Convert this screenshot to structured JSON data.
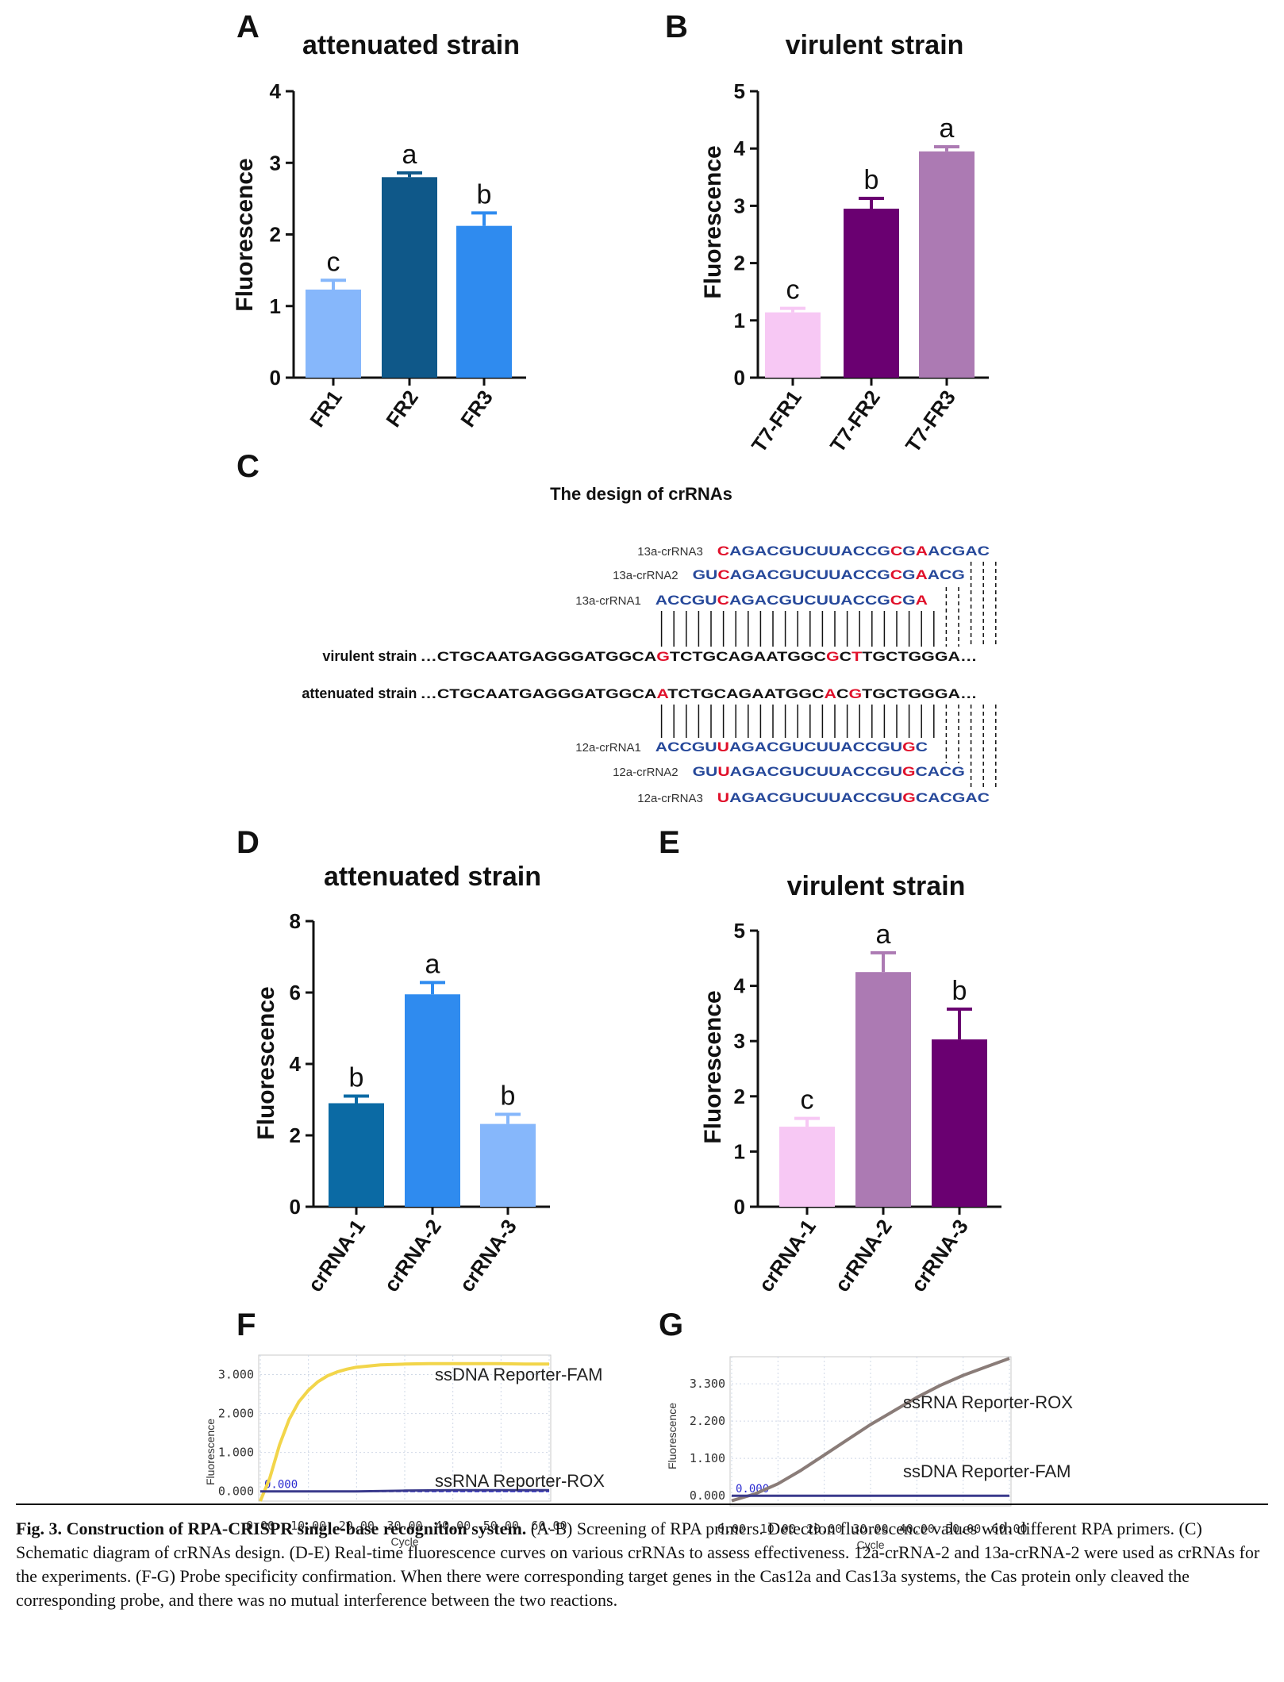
{
  "panel_letters": {
    "A": "A",
    "B": "B",
    "C": "C",
    "D": "D",
    "E": "E",
    "F": "F",
    "G": "G"
  },
  "chart_data": [
    {
      "id": "A",
      "type": "bar",
      "title": "attenuated strain",
      "ylabel": "Fluorescence",
      "ylim": [
        0,
        4
      ],
      "yticks": [
        0,
        1,
        2,
        3,
        4
      ],
      "categories": [
        "FR1",
        "FR2",
        "FR3"
      ],
      "values": [
        1.23,
        2.8,
        2.12
      ],
      "errors": [
        0.13,
        0.06,
        0.18
      ],
      "letters": [
        "c",
        "a",
        "b"
      ],
      "colors": [
        "#86b7fb",
        "#0f5889",
        "#2f8bef"
      ]
    },
    {
      "id": "B",
      "type": "bar",
      "title": "virulent strain",
      "ylabel": "Fluorescence",
      "ylim": [
        0,
        5
      ],
      "yticks": [
        0,
        1,
        2,
        3,
        4,
        5
      ],
      "categories": [
        "T7-FR1",
        "T7-FR2",
        "T7-FR3"
      ],
      "values": [
        1.14,
        2.95,
        3.95
      ],
      "errors": [
        0.07,
        0.18,
        0.08
      ],
      "letters": [
        "c",
        "b",
        "a"
      ],
      "colors": [
        "#f7c8f4",
        "#6a0071",
        "#ac7ab3"
      ]
    },
    {
      "id": "D",
      "type": "bar",
      "title": "attenuated strain",
      "ylabel": "Fluorescence",
      "ylim": [
        0,
        8
      ],
      "yticks": [
        0,
        2,
        4,
        6,
        8
      ],
      "categories": [
        "crRNA-1",
        "crRNA-2",
        "crRNA-3"
      ],
      "values": [
        2.9,
        5.95,
        2.32
      ],
      "errors": [
        0.2,
        0.33,
        0.27
      ],
      "letters": [
        "b",
        "a",
        "b"
      ],
      "colors": [
        "#0b6aa4",
        "#2f8bef",
        "#86b7fb"
      ]
    },
    {
      "id": "E",
      "type": "bar",
      "title": "virulent strain",
      "ylabel": "Fluorescence",
      "ylim": [
        0,
        5
      ],
      "yticks": [
        0,
        1,
        2,
        3,
        4,
        5
      ],
      "categories": [
        "crRNA-1",
        "crRNA-2",
        "crRNA-3"
      ],
      "values": [
        1.45,
        4.25,
        3.03
      ],
      "errors": [
        0.15,
        0.35,
        0.55
      ],
      "letters": [
        "c",
        "a",
        "b"
      ],
      "colors": [
        "#f7c8f4",
        "#ac7ab3",
        "#6a0071"
      ]
    },
    {
      "id": "F",
      "type": "line",
      "xlabel": "Cycle",
      "ylabel": "Fluorescence",
      "xlim": [
        0,
        60
      ],
      "ylim": [
        -0.25,
        3.5
      ],
      "xticks": [
        "0.00",
        "10.00",
        "20.00",
        "30.00",
        "40.00",
        "50.00",
        "60.00"
      ],
      "yticks": [
        "0.000",
        "1.000",
        "2.000",
        "3.000"
      ],
      "ytick_values": [
        0,
        1,
        2,
        3
      ],
      "zero_label": "0.000",
      "series": [
        {
          "name": "ssDNA Reporter-FAM",
          "color": "#f2d54a",
          "x": [
            0,
            2,
            4,
            6,
            8,
            10,
            12,
            14,
            16,
            18,
            20,
            25,
            30,
            35,
            40,
            45,
            50,
            55,
            60
          ],
          "y": [
            -0.25,
            0.35,
            1.2,
            1.85,
            2.3,
            2.6,
            2.82,
            2.97,
            3.07,
            3.14,
            3.19,
            3.25,
            3.27,
            3.28,
            3.28,
            3.28,
            3.28,
            3.27,
            3.27
          ]
        },
        {
          "name": "ssRNA Reporter-ROX",
          "color": "#3a3a8c",
          "x": [
            0,
            10,
            20,
            30,
            40,
            50,
            60
          ],
          "y": [
            0.0,
            0.0,
            0.0,
            0.02,
            0.03,
            0.03,
            0.03
          ]
        }
      ]
    },
    {
      "id": "G",
      "type": "line",
      "xlabel": "Cycle",
      "ylabel": "Fluorescence",
      "xlim": [
        0,
        60
      ],
      "ylim": [
        -0.3,
        4.1
      ],
      "xticks": [
        "0.00",
        "10.00",
        "20.00",
        "30.00",
        "40.00",
        "50.00",
        "60.00"
      ],
      "yticks": [
        "0.000",
        "1.100",
        "2.200",
        "3.300"
      ],
      "ytick_values": [
        0,
        1.1,
        2.2,
        3.3
      ],
      "zero_label": "0.000",
      "series": [
        {
          "name": "ssRNA Reporter-ROX",
          "color": "#8a7c78",
          "x": [
            0,
            5,
            10,
            15,
            20,
            25,
            30,
            35,
            40,
            45,
            50,
            55,
            60
          ],
          "y": [
            -0.15,
            0.05,
            0.35,
            0.75,
            1.2,
            1.65,
            2.1,
            2.5,
            2.9,
            3.25,
            3.55,
            3.8,
            4.05
          ]
        },
        {
          "name": "ssDNA Reporter-FAM",
          "color": "#3a3a8c",
          "x": [
            0,
            10,
            20,
            30,
            40,
            50,
            60
          ],
          "y": [
            0.0,
            0.0,
            0.0,
            0.0,
            0.0,
            0.0,
            0.0
          ]
        }
      ]
    }
  ],
  "crrna_design": {
    "title": "The design of crRNAs",
    "labels": {
      "r13_3": "13a-crRNA3",
      "r13_2": "13a-crRNA2",
      "r13_1": "13a-crRNA1",
      "r12_1": "12a-crRNA1",
      "r12_2": "12a-crRNA2",
      "r12_3": "12a-crRNA3"
    },
    "strain_labels": {
      "virulent": "virulent strain",
      "attenuated": "attenuated strain"
    },
    "sequences": {
      "r13_3": [
        [
          "C",
          "red"
        ],
        [
          "AGACGUCUUACCG",
          "blue"
        ],
        [
          "C",
          "red"
        ],
        [
          "G",
          "blue"
        ],
        [
          "A",
          "red"
        ],
        [
          "ACGAC",
          "blue"
        ]
      ],
      "r13_2": [
        [
          "GU",
          "blue"
        ],
        [
          "C",
          "red"
        ],
        [
          "AGACGUCUUACCG",
          "blue"
        ],
        [
          "C",
          "red"
        ],
        [
          "G",
          "blue"
        ],
        [
          "A",
          "red"
        ],
        [
          "ACG",
          "blue"
        ]
      ],
      "r13_1": [
        [
          "ACCGU",
          "blue"
        ],
        [
          "C",
          "red"
        ],
        [
          "AGACGUCUUACCG",
          "blue"
        ],
        [
          "C",
          "red"
        ],
        [
          "G",
          "blue"
        ],
        [
          "A",
          "red"
        ]
      ],
      "virulent": [
        [
          "…CTGCAATGAGGGATGGCA",
          "black"
        ],
        [
          "G",
          "red"
        ],
        [
          "TCTGCAGAATGGC",
          "black"
        ],
        [
          "G",
          "red"
        ],
        [
          "C",
          "black"
        ],
        [
          "T",
          "red"
        ],
        [
          "TGCTGGGA…",
          "black"
        ]
      ],
      "attenuated": [
        [
          "…CTGCAATGAGGGATGGCA",
          "black"
        ],
        [
          "A",
          "red"
        ],
        [
          "TCTGCAGAATGGC",
          "black"
        ],
        [
          "A",
          "red"
        ],
        [
          "C",
          "black"
        ],
        [
          "G",
          "red"
        ],
        [
          "TGCTGGGA…",
          "black"
        ]
      ],
      "r12_1": [
        [
          "ACCGU",
          "blue"
        ],
        [
          "U",
          "red"
        ],
        [
          "AGACGUCUUACCGU",
          "blue"
        ],
        [
          "G",
          "red"
        ],
        [
          "C",
          "blue"
        ]
      ],
      "r12_2": [
        [
          "GU",
          "blue"
        ],
        [
          "U",
          "red"
        ],
        [
          "AGACGUCUUACCGU",
          "blue"
        ],
        [
          "G",
          "red"
        ],
        [
          "CACG",
          "blue"
        ]
      ],
      "r12_3": [
        [
          "U",
          "red"
        ],
        [
          "AGACGUCUUACCGU",
          "blue"
        ],
        [
          "G",
          "red"
        ],
        [
          "CACGAC",
          "blue"
        ]
      ]
    }
  },
  "caption": {
    "label": "Fig. 3.",
    "title": "Construction of RPA-CRISPR single-base recognition system.",
    "text": "(A-B) Screening of RPA primers. Detection fluorescence values with different RPA primers. (C) Schematic diagram of crRNAs design. (D-E) Real-time fluorescence curves on various crRNAs to assess effectiveness. 12a-crRNA-2 and 13a-crRNA-2 were used as crRNAs for the experiments. (F-G) Probe specificity confirmation. When there were corresponding target genes in the Cas12a and Cas13a systems, the Cas protein only cleaved the corresponding probe, and there was no mutual interference between the two reactions."
  }
}
